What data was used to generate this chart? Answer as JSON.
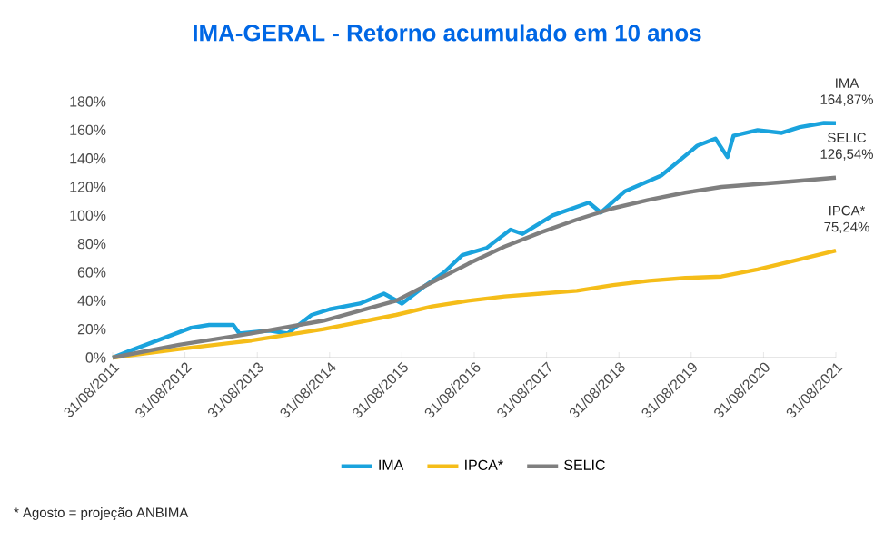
{
  "chart_data": {
    "type": "line",
    "title": "IMA-GERAL  - Retorno acumulado em 10 anos",
    "xlim": [
      "2011-08-31",
      "2021-08-31"
    ],
    "xticks": [
      {
        "value": "2011-08-31",
        "label": "31/08/2011"
      },
      {
        "value": "2012-08-31",
        "label": "31/08/2012"
      },
      {
        "value": "2013-08-31",
        "label": "31/08/2013"
      },
      {
        "value": "2014-08-31",
        "label": "31/08/2014"
      },
      {
        "value": "2015-08-31",
        "label": "31/08/2015"
      },
      {
        "value": "2016-08-31",
        "label": "31/08/2016"
      },
      {
        "value": "2017-08-31",
        "label": "31/08/2017"
      },
      {
        "value": "2018-08-31",
        "label": "31/08/2018"
      },
      {
        "value": "2019-08-31",
        "label": "31/08/2019"
      },
      {
        "value": "2020-08-31",
        "label": "31/08/2020"
      },
      {
        "value": "2021-08-31",
        "label": "31/08/2021"
      }
    ],
    "ylim": [
      0,
      180
    ],
    "yticks": [
      {
        "value": 0,
        "label": "0%"
      },
      {
        "value": 20,
        "label": "20%"
      },
      {
        "value": 40,
        "label": "40%"
      },
      {
        "value": 60,
        "label": "60%"
      },
      {
        "value": 80,
        "label": "80%"
      },
      {
        "value": 100,
        "label": "100%"
      },
      {
        "value": 120,
        "label": "120%"
      },
      {
        "value": 140,
        "label": "140%"
      },
      {
        "value": 160,
        "label": "160%"
      },
      {
        "value": 180,
        "label": "180%"
      }
    ],
    "grid": false,
    "legend": "bottom",
    "series": [
      {
        "name": "IMA",
        "color": "#1aa3dd",
        "x": [
          "2011-08-31",
          "2011-12",
          "2012-05",
          "2012-10",
          "2013-01",
          "2013-05",
          "2013-06",
          "2013-11",
          "2014-02",
          "2014-06",
          "2014-09",
          "2015-02",
          "2015-06",
          "2015-09",
          "2016-01",
          "2016-04",
          "2016-07",
          "2016-11",
          "2017-03",
          "2017-05",
          "2017-10",
          "2018-04",
          "2018-06",
          "2018-10",
          "2019-04",
          "2019-10",
          "2020-01",
          "2020-03",
          "2020-04",
          "2020-08",
          "2020-12",
          "2021-03",
          "2021-07",
          "2021-08-31"
        ],
        "values": [
          0,
          5,
          13,
          21,
          23,
          23,
          17,
          19,
          17,
          30,
          34,
          38,
          45,
          38,
          51,
          60,
          72,
          77,
          90,
          87,
          100,
          109,
          102,
          117,
          128,
          149,
          154,
          141,
          156,
          160,
          158,
          162,
          165,
          164.87
        ],
        "value_labels": [
          null,
          null,
          null,
          null,
          null,
          null,
          null,
          null,
          null,
          null,
          null,
          null,
          null,
          null,
          null,
          null,
          null,
          null,
          null,
          null,
          null,
          null,
          null,
          null,
          null,
          null,
          null,
          null,
          null,
          null,
          null,
          null,
          null,
          "164,87%"
        ]
      },
      {
        "name": "IPCA*",
        "color": "#f5bd19",
        "x": [
          "2011-08-31",
          "2012-08",
          "2013-08",
          "2014-08",
          "2015-08",
          "2016-02",
          "2016-08",
          "2017-02",
          "2017-08",
          "2018-02",
          "2018-08",
          "2019-02",
          "2019-08",
          "2020-02",
          "2020-08",
          "2021-02",
          "2021-08-31"
        ],
        "values": [
          0,
          6,
          12,
          20,
          30,
          36,
          40,
          43,
          45,
          47,
          51,
          54,
          56,
          57,
          62,
          68,
          75.24
        ],
        "value_labels": [
          null,
          null,
          null,
          null,
          null,
          null,
          null,
          null,
          null,
          null,
          null,
          null,
          null,
          null,
          null,
          null,
          "75,24%"
        ]
      },
      {
        "name": "SELIC",
        "color": "#7f7f7f",
        "x": [
          "2011-08-31",
          "2012-08",
          "2013-08",
          "2014-08",
          "2015-08",
          "2016-02",
          "2016-08",
          "2017-02",
          "2017-08",
          "2018-02",
          "2018-08",
          "2019-02",
          "2019-08",
          "2020-02",
          "2020-08",
          "2021-02",
          "2021-08-31"
        ],
        "values": [
          0,
          9,
          17,
          26,
          40,
          53,
          66,
          78,
          88,
          97,
          105,
          111,
          116,
          120,
          122,
          124,
          126.54
        ],
        "value_labels": [
          null,
          null,
          null,
          null,
          null,
          null,
          null,
          null,
          null,
          null,
          null,
          null,
          null,
          null,
          null,
          null,
          "126,54%"
        ]
      }
    ],
    "annotations": [
      "* Agosto = projeção ANBIMA"
    ]
  }
}
